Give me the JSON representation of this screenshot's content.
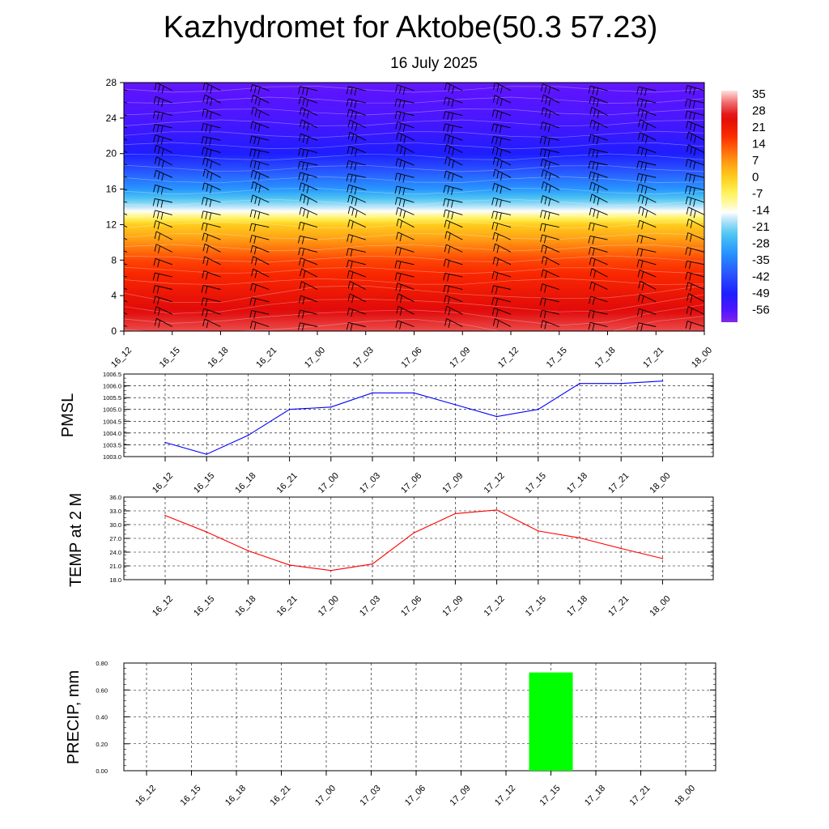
{
  "header": {
    "title": "Kazhydromet for Aktobe(50.3 57.23)",
    "subtitle": "16 July 2025"
  },
  "chart_data": [
    {
      "type": "heatmap",
      "title": "Kazhydromet for Aktobe(50.3 57.23)",
      "subtitle": "16 July 2025",
      "x": [
        "16_12",
        "16_15",
        "16_18",
        "16_21",
        "17_00",
        "17_03",
        "17_06",
        "17_09",
        "17_12",
        "17_15",
        "17_18",
        "17_21",
        "18_00"
      ],
      "y_ticks": [
        "0",
        "4",
        "8",
        "12",
        "16",
        "20",
        "24",
        "28"
      ],
      "ylim": [
        0,
        28
      ],
      "colorbar_labels": [
        "35",
        "28",
        "21",
        "14",
        "7",
        "0",
        "-7",
        "-14",
        "-21",
        "-28",
        "-35",
        "-42",
        "-49",
        "-56"
      ],
      "colorbar_range": [
        -60,
        39
      ],
      "temperature_by_level": {
        "levels": [
          0,
          4,
          8,
          12,
          13.4,
          16,
          20,
          24,
          28
        ],
        "values": [
          32,
          25,
          17,
          2,
          -12,
          -30,
          -48,
          -54,
          -57
        ]
      },
      "wind_barbs": true,
      "grid": false
    },
    {
      "type": "line",
      "ylabel": "PMSL",
      "categories": [
        "16_12",
        "16_15",
        "16_18",
        "16_21",
        "17_00",
        "17_03",
        "17_06",
        "17_09",
        "17_12",
        "17_15",
        "17_18",
        "17_21",
        "18_00"
      ],
      "y_ticks": [
        "1003.0",
        "1003.5",
        "1004.0",
        "1004.5",
        "1005.0",
        "1005.5",
        "1006.0",
        "1006.5"
      ],
      "ylim": [
        1003.0,
        1006.5
      ],
      "series": [
        {
          "values": [
            1003.6,
            1003.1,
            1003.9,
            1005.0,
            1005.1,
            1005.7,
            1005.7,
            1005.2,
            1004.7,
            1005.0,
            1006.1,
            1006.1,
            1006.2
          ],
          "color": "#0000ff"
        }
      ],
      "grid": true
    },
    {
      "type": "line",
      "ylabel": "TEMP at 2 M",
      "categories": [
        "16_12",
        "16_15",
        "16_18",
        "16_21",
        "17_00",
        "17_03",
        "17_06",
        "17_09",
        "17_12",
        "17_15",
        "17_18",
        "17_21",
        "18_00"
      ],
      "y_ticks": [
        "18.0",
        "21.0",
        "24.0",
        "27.0",
        "30.0",
        "33.0",
        "36.0"
      ],
      "ylim": [
        18.0,
        36.0
      ],
      "series": [
        {
          "values": [
            32.0,
            28.4,
            24.3,
            21.2,
            20.0,
            21.4,
            28.2,
            32.4,
            33.2,
            28.6,
            27.1,
            24.8,
            22.6
          ],
          "color": "#ff0000"
        }
      ],
      "grid": true
    },
    {
      "type": "bar",
      "ylabel": "PRECIP, mm",
      "categories": [
        "16_12",
        "16_15",
        "16_18",
        "16_21",
        "17_00",
        "17_03",
        "17_06",
        "17_09",
        "17_12",
        "17_15",
        "17_18",
        "17_21",
        "18_00"
      ],
      "y_ticks": [
        "0.00",
        "0.20",
        "0.40",
        "0.60",
        "0.80"
      ],
      "ylim": [
        0,
        0.8
      ],
      "values": [
        0,
        0,
        0,
        0,
        0,
        0,
        0,
        0,
        0,
        0.73,
        0,
        0,
        0
      ],
      "bar_color": "#00ff00",
      "grid": true
    }
  ]
}
